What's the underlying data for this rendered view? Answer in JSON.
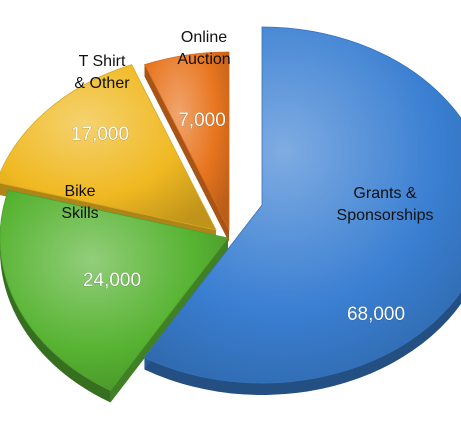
{
  "chart_data": {
    "type": "pie",
    "title": "",
    "exploded": true,
    "slices": [
      {
        "label": "Grants & Sponsorships",
        "label_lines": [
          "Grants &",
          "Sponsorships"
        ],
        "value": 68000,
        "value_label": "68,000",
        "color": "#3a7fd2"
      },
      {
        "label": "Bike Skills",
        "label_lines": [
          "Bike",
          "Skills"
        ],
        "value": 24000,
        "value_label": "24,000",
        "color": "#57b332"
      },
      {
        "label": "T Shirt & Other",
        "label_lines": [
          "T Shirt",
          "& Other"
        ],
        "value": 17000,
        "value_label": "17,000",
        "color": "#f0b922"
      },
      {
        "label": "Online Auction",
        "label_lines": [
          "Online",
          "Auction"
        ],
        "value": 7000,
        "value_label": "7,000",
        "color": "#e8751f"
      }
    ]
  }
}
